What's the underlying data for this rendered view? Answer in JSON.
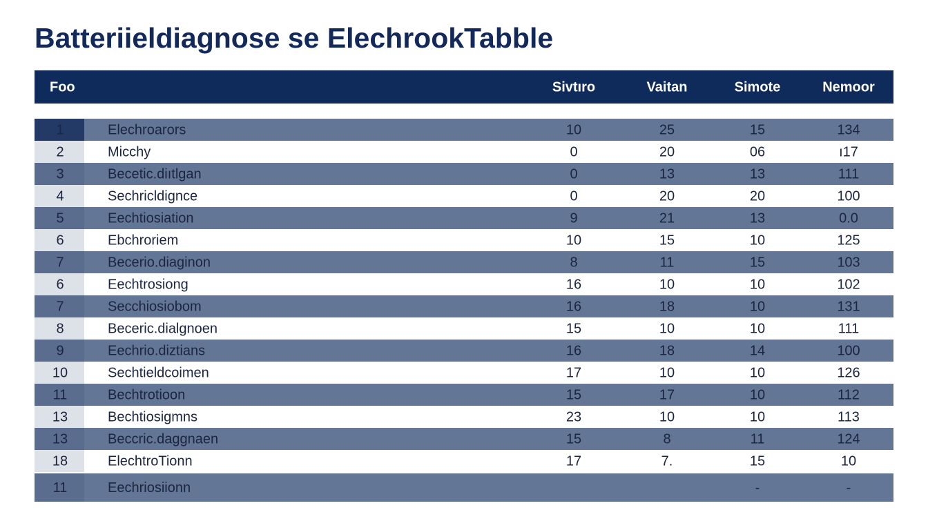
{
  "header": {
    "title": "Batteriieldiagnose se ElechrookTabble"
  },
  "table": {
    "columns": [
      "Foo",
      "Sivtıro",
      "Vaitan",
      "Simote",
      "Nemoor"
    ],
    "rows": [
      [
        "1",
        "Elechroarors",
        "10",
        "25",
        "15",
        "134"
      ],
      [
        "2",
        "Micchy",
        "0",
        "20",
        "06",
        "ı17"
      ],
      [
        "3",
        "Becetic.diıtlgan",
        "0",
        "13",
        "13",
        "111"
      ],
      [
        "4",
        "Sechricldignce",
        "0",
        "20",
        "20",
        "100"
      ],
      [
        "5",
        "Eechtiosiation",
        "9",
        "21",
        "13",
        "0.0"
      ],
      [
        "6",
        "Ebchroriem",
        "10",
        "15",
        "10",
        "125"
      ],
      [
        "7",
        "Becerio.diaginon",
        "8",
        "11",
        "15",
        "103"
      ],
      [
        "6",
        "Eechtrosiong",
        "16",
        "10",
        "10",
        "102"
      ],
      [
        "7",
        "Secchiosiobom",
        "16",
        "18",
        "10",
        "131"
      ],
      [
        "8",
        "Beceric.dialgnoen",
        "15",
        "10",
        "10",
        "111"
      ],
      [
        "9",
        "Eechrio.diztians",
        "16",
        "18",
        "14",
        "100"
      ],
      [
        "10",
        "Sechtieldcoimen",
        "17",
        "10",
        "10",
        "126"
      ],
      [
        "11",
        "Bechtrotioon",
        "15",
        "17",
        "10",
        "112"
      ],
      [
        "13",
        "Bechtiosigmns",
        "23",
        "10",
        "10",
        "113"
      ],
      [
        "13",
        "Beccric.daggnaen",
        "15",
        "8",
        "11",
        "124"
      ],
      [
        "18",
        "ElechtroTionn",
        "17",
        "7.",
        "15",
        "10"
      ],
      [
        "11",
        "Eechriosiionn",
        null,
        null,
        "-",
        "-"
      ]
    ]
  }
}
